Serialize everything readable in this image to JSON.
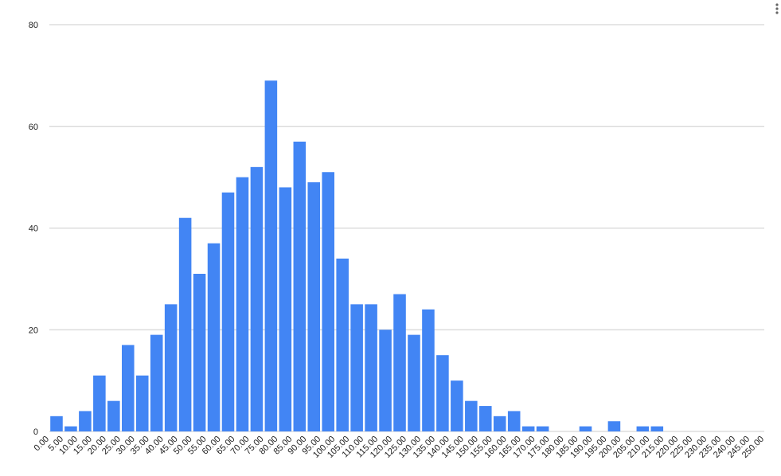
{
  "chart_data": {
    "type": "histogram",
    "bins": [
      0,
      5,
      10,
      15,
      20,
      25,
      30,
      35,
      40,
      45,
      50,
      55,
      60,
      65,
      70,
      75,
      80,
      85,
      90,
      95,
      100,
      105,
      110,
      115,
      120,
      125,
      130,
      135,
      140,
      145,
      150,
      155,
      160,
      165,
      170,
      175,
      180,
      185,
      190,
      195,
      200,
      205,
      210,
      215,
      220,
      225,
      230,
      235,
      240,
      245,
      250
    ],
    "values": [
      3,
      1,
      4,
      11,
      6,
      17,
      11,
      19,
      25,
      42,
      31,
      37,
      47,
      50,
      52,
      69,
      48,
      57,
      49,
      51,
      34,
      25,
      25,
      20,
      27,
      19,
      24,
      15,
      10,
      6,
      5,
      3,
      4,
      1,
      1,
      0,
      0,
      1,
      0,
      2,
      0,
      1,
      1,
      0,
      0,
      0,
      0,
      0,
      0,
      0
    ],
    "color": "#4285f4",
    "ylim": [
      0,
      80
    ],
    "yticks": [
      0,
      20,
      40,
      60,
      80
    ],
    "xlim": [
      0,
      250
    ],
    "xticks": [
      {
        "value": 0,
        "label": "0.00"
      },
      {
        "value": 5,
        "label": "5.00"
      },
      {
        "value": 10,
        "label": "10.00"
      },
      {
        "value": 15,
        "label": "15.00"
      },
      {
        "value": 20,
        "label": "20.00"
      },
      {
        "value": 25,
        "label": "25.00"
      },
      {
        "value": 30,
        "label": "30.00"
      },
      {
        "value": 35,
        "label": "35.00"
      },
      {
        "value": 40,
        "label": "40.00"
      },
      {
        "value": 45,
        "label": "45.00"
      },
      {
        "value": 50,
        "label": "50.00"
      },
      {
        "value": 55,
        "label": "55.00"
      },
      {
        "value": 60,
        "label": "60.00"
      },
      {
        "value": 65,
        "label": "65.00"
      },
      {
        "value": 70,
        "label": "70.00"
      },
      {
        "value": 75,
        "label": "75.00"
      },
      {
        "value": 80,
        "label": "80.00"
      },
      {
        "value": 85,
        "label": "85.00"
      },
      {
        "value": 90,
        "label": "90.00"
      },
      {
        "value": 95,
        "label": "95.00"
      },
      {
        "value": 100,
        "label": "100.00"
      },
      {
        "value": 105,
        "label": "105.00"
      },
      {
        "value": 110,
        "label": "110.00"
      },
      {
        "value": 115,
        "label": "115.00"
      },
      {
        "value": 120,
        "label": "120.00"
      },
      {
        "value": 125,
        "label": "125.00"
      },
      {
        "value": 130,
        "label": "130.00"
      },
      {
        "value": 135,
        "label": "135.00"
      },
      {
        "value": 140,
        "label": "140.00"
      },
      {
        "value": 145,
        "label": "145.00"
      },
      {
        "value": 150,
        "label": "150.00"
      },
      {
        "value": 155,
        "label": "155.00"
      },
      {
        "value": 160,
        "label": "160.00"
      },
      {
        "value": 165,
        "label": "165.00"
      },
      {
        "value": 170,
        "label": "170.00"
      },
      {
        "value": 175,
        "label": "175.00"
      },
      {
        "value": 180,
        "label": "180.00"
      },
      {
        "value": 185,
        "label": "185.00"
      },
      {
        "value": 190,
        "label": "190.00"
      },
      {
        "value": 195,
        "label": "195.00"
      },
      {
        "value": 200,
        "label": "200.00"
      },
      {
        "value": 205,
        "label": "205.00"
      },
      {
        "value": 210,
        "label": "210.00"
      },
      {
        "value": 215,
        "label": "215.00"
      },
      {
        "value": 220,
        "label": "220.00"
      },
      {
        "value": 225,
        "label": "225.00"
      },
      {
        "value": 230,
        "label": "230.00"
      },
      {
        "value": 235,
        "label": "235.00"
      },
      {
        "value": 240,
        "label": "240.00"
      },
      {
        "value": 245,
        "label": "245.00"
      },
      {
        "value": 250,
        "label": "250.00"
      }
    ],
    "grid": true
  }
}
